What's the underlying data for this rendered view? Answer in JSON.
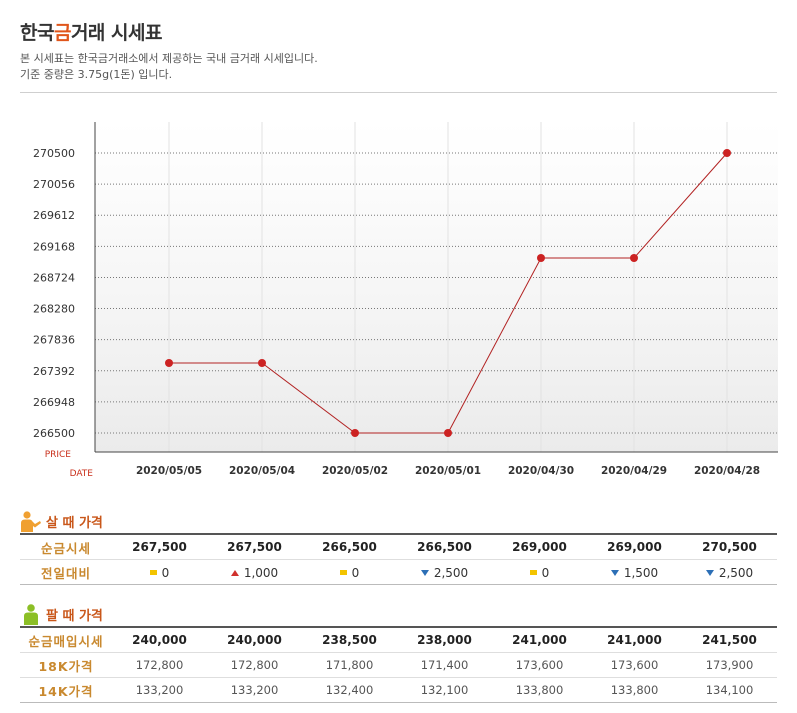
{
  "header": {
    "title_prefix": "한국",
    "title_accent": "금",
    "title_rest": "거래 시세표",
    "desc1": "본 시세표는 한국금거래소에서 제공하는 국내 금거래 시세입니다.",
    "desc2": "기준 중량은 3.75g(1돈) 입니다."
  },
  "chart_data": {
    "type": "line",
    "categories": [
      "2020/05/05",
      "2020/05/04",
      "2020/05/02",
      "2020/05/01",
      "2020/04/30",
      "2020/04/29",
      "2020/04/28"
    ],
    "values": [
      267500,
      267500,
      266500,
      266500,
      269000,
      269000,
      270500
    ],
    "y_ticks": [
      "270500",
      "270056",
      "269612",
      "269168",
      "268724",
      "268280",
      "267836",
      "267392",
      "266948",
      "266500"
    ],
    "ylim": [
      266500,
      270500
    ],
    "ylabel": "PRICE",
    "xlabel": "DATE",
    "grid": true,
    "line_color": "#b22222",
    "marker_color": "#cc2222"
  },
  "buy": {
    "title": "살 때 가격",
    "rows": [
      {
        "label": "순금시세",
        "values": [
          "267,500",
          "267,500",
          "266,500",
          "266,500",
          "269,000",
          "269,000",
          "270,500"
        ]
      },
      {
        "label": "전일대비",
        "changes": [
          {
            "dir": "flat",
            "value": "0"
          },
          {
            "dir": "up",
            "value": "1,000"
          },
          {
            "dir": "flat",
            "value": "0"
          },
          {
            "dir": "down",
            "value": "2,500"
          },
          {
            "dir": "flat",
            "value": "0"
          },
          {
            "dir": "down",
            "value": "1,500"
          },
          {
            "dir": "down",
            "value": "2,500"
          }
        ]
      }
    ]
  },
  "sell": {
    "title": "팔 때 가격",
    "rows": [
      {
        "label": "순금매입시세",
        "values": [
          "240,000",
          "240,000",
          "238,500",
          "238,000",
          "241,000",
          "241,000",
          "241,500"
        ]
      },
      {
        "label": "18K가격",
        "values": [
          "172,800",
          "172,800",
          "171,800",
          "171,400",
          "173,600",
          "173,600",
          "173,900"
        ]
      },
      {
        "label": "14K가격",
        "values": [
          "133,200",
          "133,200",
          "132,400",
          "132,100",
          "133,800",
          "133,800",
          "134,100"
        ]
      }
    ]
  },
  "colors": {
    "accent": "#e0561b",
    "buy_icon": "#f0a030",
    "sell_icon": "#8cbf26"
  }
}
